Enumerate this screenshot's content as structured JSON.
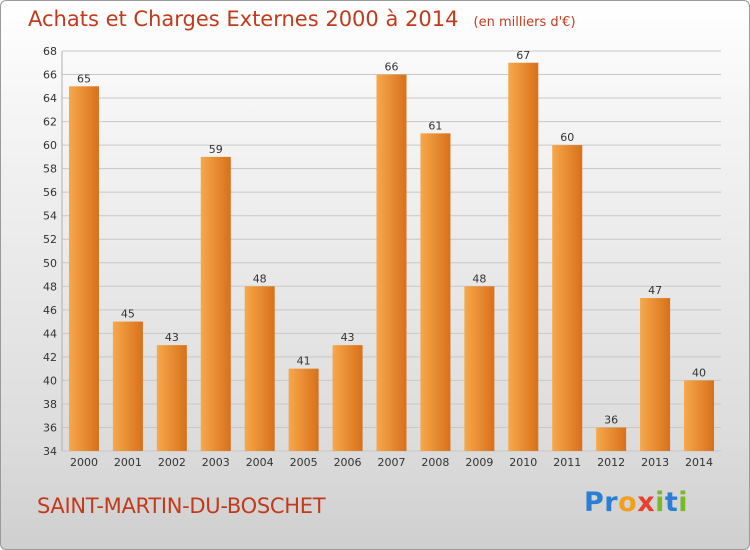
{
  "header": {
    "title": "Achats et Charges Externes 2000 à 2014",
    "subtitle": "(en milliers d'€)"
  },
  "footer": {
    "commune": "SAINT-MARTIN-DU-BOSCHET",
    "brand_letters": [
      "P",
      "r",
      "o",
      "x",
      "i",
      "t",
      "i"
    ],
    "brand_colors": [
      "#2a7fd4",
      "#2a7fd4",
      "#f0a020",
      "#e8402a",
      "#7ab82a",
      "#2a7fd4",
      "#7ab82a"
    ]
  },
  "colors": {
    "bar_light": "#f7a84a",
    "bar_dark": "#d8701a",
    "text": "#c33a1a",
    "grid": "#c8c8c8"
  },
  "chart_data": {
    "type": "bar",
    "categories": [
      "2000",
      "2001",
      "2002",
      "2003",
      "2004",
      "2005",
      "2006",
      "2007",
      "2008",
      "2009",
      "2010",
      "2011",
      "2012",
      "2013",
      "2014"
    ],
    "values": [
      65,
      45,
      43,
      59,
      48,
      41,
      43,
      66,
      61,
      48,
      67,
      60,
      36,
      47,
      40
    ],
    "title": "Achats et Charges Externes 2000 à 2014",
    "subtitle": "(en milliers d'€)",
    "xlabel": "",
    "ylabel": "",
    "ylim": [
      34,
      68
    ],
    "yticks": [
      34,
      36,
      38,
      40,
      42,
      44,
      46,
      48,
      50,
      52,
      54,
      56,
      58,
      60,
      62,
      64,
      66,
      68
    ],
    "grid": true,
    "data_labels": true
  }
}
